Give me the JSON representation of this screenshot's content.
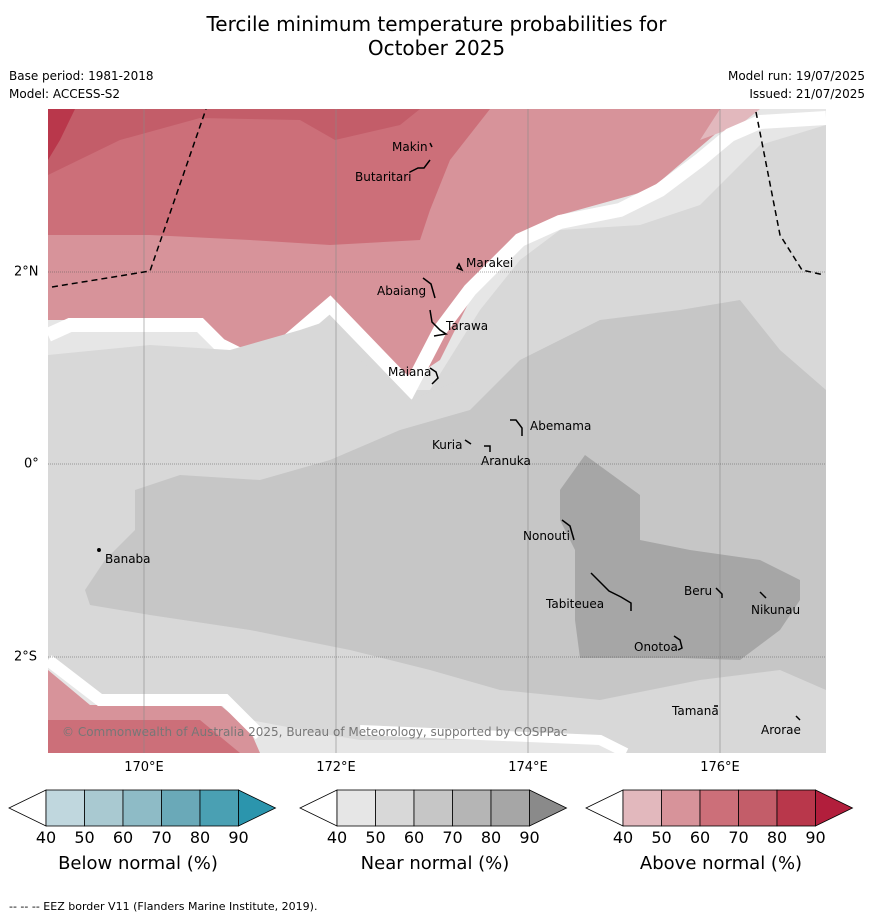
{
  "title_line1": "Tercile minimum temperature probabilities for",
  "title_line2": "October 2025",
  "meta_left": [
    "Base period: 1981-2018",
    "Model: ACCESS-S2"
  ],
  "meta_right": [
    "Model run: 19/07/2025",
    "Issued: 21/07/2025"
  ],
  "x_axis_labels": [
    "170°E",
    "172°E",
    "174°E",
    "176°E"
  ],
  "y_axis_labels": [
    "2°N",
    "0°",
    "2°S"
  ],
  "islands": [
    {
      "name": "Makin"
    },
    {
      "name": "Butaritari"
    },
    {
      "name": "Marakei"
    },
    {
      "name": "Abaiang"
    },
    {
      "name": "Tarawa"
    },
    {
      "name": "Maiana"
    },
    {
      "name": "Abemama"
    },
    {
      "name": "Kuria"
    },
    {
      "name": "Aranuka"
    },
    {
      "name": "Nonouti"
    },
    {
      "name": "Banaba"
    },
    {
      "name": "Beru"
    },
    {
      "name": "Tabiteuea"
    },
    {
      "name": "Nikunau"
    },
    {
      "name": "Onotoa"
    },
    {
      "name": "Tamana"
    },
    {
      "name": "Arorae"
    }
  ],
  "copyright": "© Commonwealth of Australia 2025, Bureau of Meteorology, supported by COSPPac",
  "colorbars": [
    {
      "title": "Below normal (%)",
      "ticks": [
        "40",
        "50",
        "60",
        "70",
        "80",
        "90"
      ],
      "colors": [
        "#ffffff",
        "#c0d7de",
        "#a9c9d1",
        "#8ebbc6",
        "#6aa9b8",
        "#4aa0b3",
        "#2b95ad"
      ]
    },
    {
      "title": "Near normal (%)",
      "ticks": [
        "40",
        "50",
        "60",
        "70",
        "80",
        "90"
      ],
      "colors": [
        "#ffffff",
        "#e6e6e6",
        "#d8d8d8",
        "#c6c6c6",
        "#b5b5b5",
        "#a6a6a6",
        "#8a8a8a"
      ]
    },
    {
      "title": "Above normal (%)",
      "ticks": [
        "40",
        "50",
        "60",
        "70",
        "80",
        "90"
      ],
      "colors": [
        "#ffffff",
        "#e2b8bd",
        "#d7939a",
        "#cc6f79",
        "#c35d69",
        "#b9374b",
        "#b21e3c"
      ]
    }
  ],
  "footnote": "--  --  -- EEZ border V11 (Flanders Marine Institute, 2019)."
}
